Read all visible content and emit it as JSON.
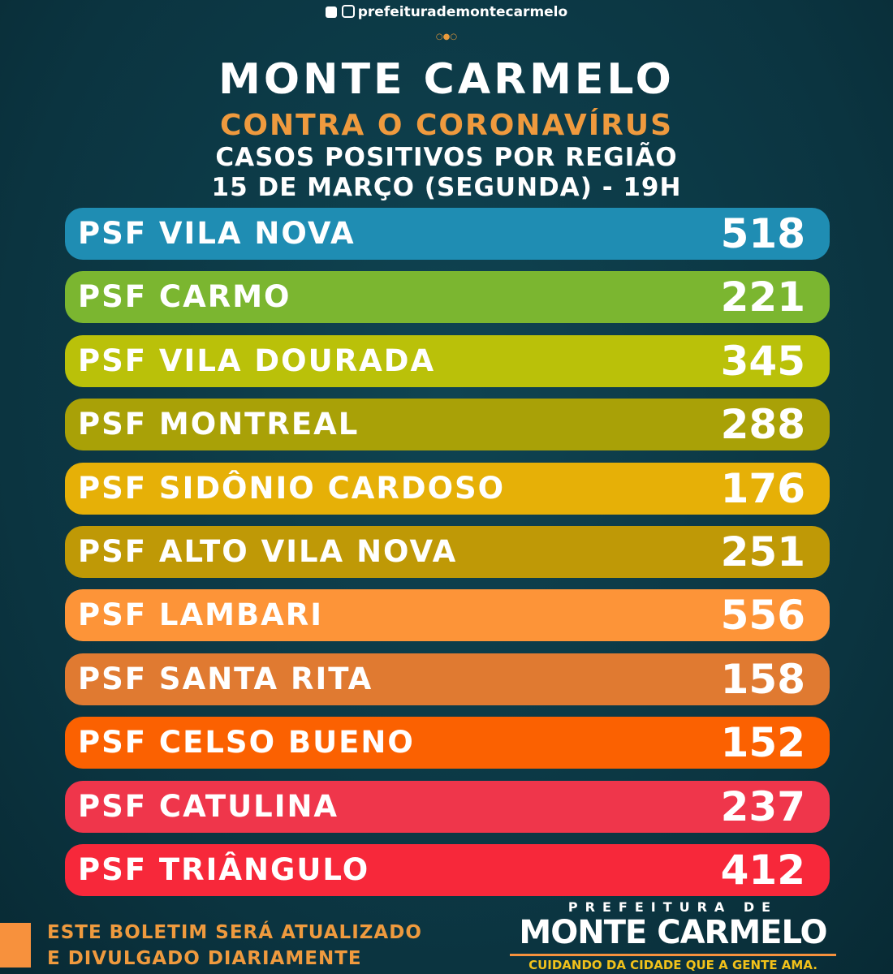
{
  "header": {
    "social": "prefeiturademontecarmelo",
    "title": "MONTE CARMELO",
    "subtitle": "CONTRA O CORONAVÍRUS",
    "heading": "CASOS POSITIVOS POR REGIÃO",
    "date": "15 DE MARÇO (SEGUNDA) - 19H"
  },
  "rows": [
    {
      "label": "PSF VILA NOVA",
      "value": 518,
      "color": "#1f8db3"
    },
    {
      "label": "PSF CARMO",
      "value": 221,
      "color": "#7bb630"
    },
    {
      "label": "PSF VILA DOURADA",
      "value": 345,
      "color": "#bac109"
    },
    {
      "label": "PSF MONTREAL",
      "value": 288,
      "color": "#a9a107"
    },
    {
      "label": "PSF SIDÔNIO CARDOSO",
      "value": 176,
      "color": "#e6b007"
    },
    {
      "label": "PSF ALTO VILA NOVA",
      "value": 251,
      "color": "#bf9906"
    },
    {
      "label": "PSF LAMBARI",
      "value": 556,
      "color": "#fd9438"
    },
    {
      "label": "PSF SANTA RITA",
      "value": 158,
      "color": "#e07a31"
    },
    {
      "label": "PSF CELSO BUENO",
      "value": 152,
      "color": "#fb6101"
    },
    {
      "label": "PSF CATULINA",
      "value": 237,
      "color": "#ef364b"
    },
    {
      "label": "PSF TRIÂNGULO",
      "value": 412,
      "color": "#f7283a"
    }
  ],
  "footer": {
    "notice": [
      "ESTE BOLETIM SERÁ ATUALIZADO",
      "E DIVULGADO DIARIAMENTE"
    ],
    "logo_top": "PREFEITURA DE",
    "logo_name": "MONTE CARMELO",
    "logo_slogan": "CUIDANDO DA CIDADE QUE A GENTE AMA."
  }
}
